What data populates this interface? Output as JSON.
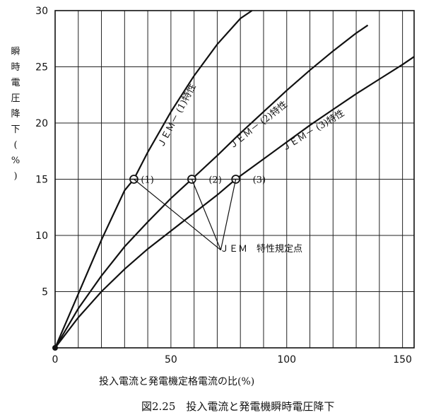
{
  "chart_data": {
    "type": "line",
    "title": "図2.25　投入電流と発電機瞬時電圧降下",
    "xlabel": "投入電流と発電機定格電流の比(%)",
    "ylabel": "瞬時電圧降下(%)",
    "xlim": [
      0,
      155
    ],
    "ylim": [
      0,
      30
    ],
    "x_ticks": [
      0,
      50,
      100,
      150
    ],
    "y_ticks": [
      5,
      10,
      15,
      20,
      25,
      30
    ],
    "grid": true,
    "x_grid_step": 10,
    "y_grid_step": 5,
    "series": [
      {
        "name": "JEM－(1)特性",
        "x": [
          0,
          10,
          20,
          30,
          34,
          40,
          50,
          60,
          70,
          80,
          85
        ],
        "y": [
          0,
          4.8,
          9.6,
          14.0,
          15.0,
          17.4,
          21.0,
          24.2,
          27.0,
          29.3,
          30
        ]
      },
      {
        "name": "JEM－(2)特性",
        "x": [
          0,
          10,
          20,
          30,
          40,
          50,
          59,
          70,
          80,
          90,
          100,
          110,
          120,
          130,
          135
        ],
        "y": [
          0,
          3.5,
          6.4,
          9.0,
          11.2,
          13.3,
          15.0,
          17.1,
          19.1,
          21.0,
          22.9,
          24.7,
          26.4,
          28.0,
          28.7
        ]
      },
      {
        "name": "JEM－(3)特性",
        "x": [
          0,
          10,
          20,
          30,
          40,
          50,
          60,
          70,
          78,
          90,
          100,
          110,
          120,
          130,
          140,
          150,
          155
        ],
        "y": [
          0,
          2.7,
          5.0,
          7.0,
          8.8,
          10.4,
          12.0,
          13.6,
          15.0,
          16.8,
          18.3,
          19.8,
          21.2,
          22.6,
          23.9,
          25.2,
          25.9
        ]
      }
    ],
    "specified_points": [
      {
        "label": "(1)",
        "x": 34,
        "y": 15
      },
      {
        "label": "(2)",
        "x": 59,
        "y": 15
      },
      {
        "label": "(3)",
        "x": 78,
        "y": 15
      }
    ],
    "callout": {
      "text": "ＪＥＭ　特性規定点",
      "x": 70,
      "y": 8.7
    },
    "series_labels": [
      "ＪＥＭ－ (1)特性",
      "ＪＥＭ－ (2)特性",
      "ＪＥＭ－ (3)特性"
    ]
  }
}
